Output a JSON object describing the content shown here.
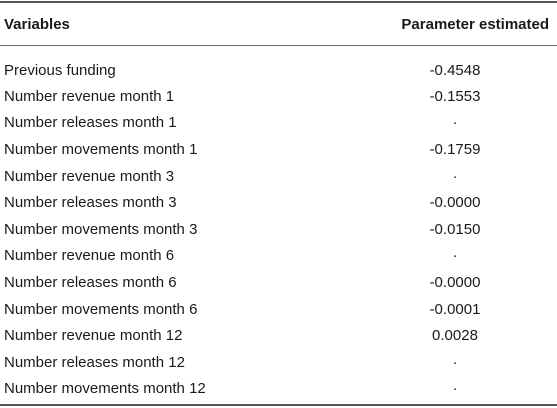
{
  "table": {
    "headers": {
      "variables": "Variables",
      "parameter": "Parameter estimated"
    },
    "rows": [
      {
        "variable": "Previous funding",
        "estimate": "-0.4548"
      },
      {
        "variable": "Number revenue month 1",
        "estimate": "-0.1553"
      },
      {
        "variable": "Number releases month 1",
        "estimate": "·"
      },
      {
        "variable": "Number movements month 1",
        "estimate": "-0.1759"
      },
      {
        "variable": "Number revenue month 3",
        "estimate": "·"
      },
      {
        "variable": "Number releases month 3",
        "estimate": "-0.0000"
      },
      {
        "variable": "Number movements month 3",
        "estimate": "-0.0150"
      },
      {
        "variable": "Number revenue month 6",
        "estimate": "·"
      },
      {
        "variable": "Number releases month 6",
        "estimate": "-0.0000"
      },
      {
        "variable": "Number movements month 6",
        "estimate": "-0.0001"
      },
      {
        "variable": "Number revenue month 12",
        "estimate": "0.0028"
      },
      {
        "variable": "Number releases month 12",
        "estimate": "·"
      },
      {
        "variable": "Number movements month 12",
        "estimate": "·"
      }
    ]
  }
}
